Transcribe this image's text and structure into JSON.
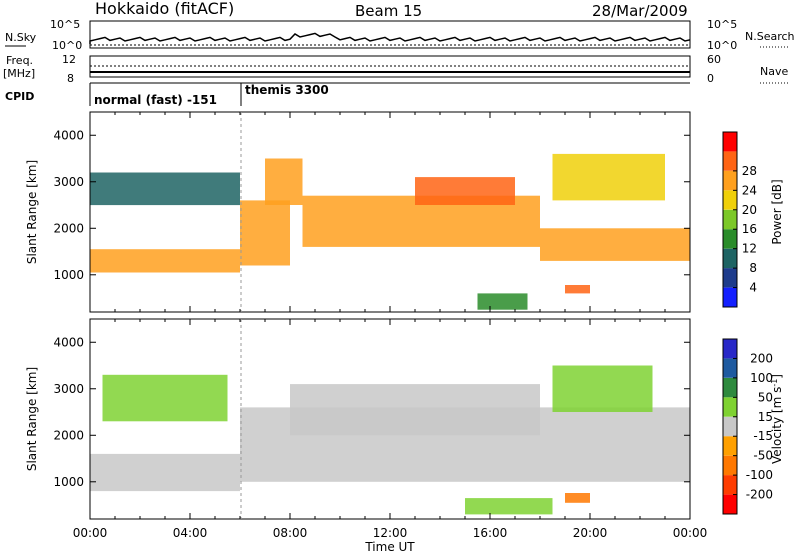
{
  "header": {
    "station": "Hokkaido (fitACF)",
    "beam": "Beam 15",
    "date": "28/Mar/2009"
  },
  "panels": {
    "nsky": {
      "left_label": "N.Sky",
      "right_label": "N.Search",
      "ticks_left": [
        "10^5",
        "10^0"
      ],
      "ticks_right": [
        "10^5",
        "10^0"
      ]
    },
    "freq": {
      "left_label_1": "Freq.",
      "left_label_2": "[MHz]",
      "right_label": "Nave",
      "ticks_left": [
        "12",
        "8"
      ],
      "ticks_right": [
        "60",
        "0"
      ]
    },
    "cpid": {
      "label": "CPID",
      "modes": [
        "normal (fast) -151",
        "themis 3300"
      ]
    }
  },
  "chart_data": [
    {
      "type": "heatmap",
      "title": "",
      "quantity": "Power",
      "xlabel": "",
      "ylabel": "Slant Range [km]",
      "colorbar_label": "Power [dB]",
      "xlim": [
        "00:00",
        "24:00"
      ],
      "ylim": [
        200,
        4500
      ],
      "y_ticks": [
        1000,
        2000,
        3000,
        4000
      ],
      "colorbar_ticks": [
        4,
        8,
        12,
        16,
        20,
        24,
        28
      ],
      "colorbar_colors": [
        "#1420ff",
        "#1e3c8c",
        "#1e6464",
        "#2a8c2a",
        "#7cc828",
        "#f0d00a",
        "#ffa01e",
        "#ff6414",
        "#ff0000"
      ],
      "regions": [
        {
          "t_start": 0.0,
          "t_end": 6.0,
          "range_start": 1050,
          "range_end": 1550,
          "level_db": 24
        },
        {
          "t_start": 0.0,
          "t_end": 6.0,
          "range_start": 2500,
          "range_end": 3200,
          "level_db": 8
        },
        {
          "t_start": 6.0,
          "t_end": 8.0,
          "range_start": 1200,
          "range_end": 2600,
          "level_db": 22
        },
        {
          "t_start": 7.0,
          "t_end": 8.5,
          "range_start": 2500,
          "range_end": 3500,
          "level_db": 22
        },
        {
          "t_start": 8.5,
          "t_end": 18.0,
          "range_start": 1600,
          "range_end": 2700,
          "level_db": 24
        },
        {
          "t_start": 13.0,
          "t_end": 17.0,
          "range_start": 2500,
          "range_end": 3100,
          "level_db": 26
        },
        {
          "t_start": 18.0,
          "t_end": 24.0,
          "range_start": 1300,
          "range_end": 2000,
          "level_db": 24
        },
        {
          "t_start": 18.5,
          "t_end": 23.0,
          "range_start": 2600,
          "range_end": 3600,
          "level_db": 20
        },
        {
          "t_start": 19.0,
          "t_end": 20.0,
          "range_start": 600,
          "range_end": 780,
          "level_db": 28
        },
        {
          "t_start": 15.5,
          "t_end": 17.5,
          "range_start": 250,
          "range_end": 600,
          "level_db": 12
        }
      ]
    },
    {
      "type": "heatmap",
      "title": "",
      "quantity": "Velocity",
      "xlabel": "Time UT",
      "ylabel": "Slant Range [km]",
      "colorbar_label": "Velocity [m s^-1]",
      "xlim": [
        "00:00",
        "24:00"
      ],
      "ylim": [
        200,
        4500
      ],
      "x_ticks": [
        "00:00",
        "04:00",
        "08:00",
        "12:00",
        "16:00",
        "20:00",
        "00:00"
      ],
      "y_ticks": [
        1000,
        2000,
        3000,
        4000
      ],
      "colorbar_ticks": [
        200,
        100,
        50,
        15,
        -15,
        -50,
        -100,
        -200
      ],
      "colorbar_colors": [
        "#2828c8",
        "#1e5aa0",
        "#2e8a3e",
        "#7fd232",
        "#c8c8c8",
        "#ffa000",
        "#ff7800",
        "#ff3c00",
        "#ff0000"
      ],
      "regions": [
        {
          "t_start": 0.0,
          "t_end": 6.0,
          "range_start": 800,
          "range_end": 1600,
          "velocity": 0
        },
        {
          "t_start": 0.5,
          "t_end": 5.5,
          "range_start": 2300,
          "range_end": 3300,
          "velocity": 20
        },
        {
          "t_start": 6.0,
          "t_end": 24.0,
          "range_start": 1000,
          "range_end": 2600,
          "velocity": 0
        },
        {
          "t_start": 8.0,
          "t_end": 18.0,
          "range_start": 2000,
          "range_end": 3100,
          "velocity": 0
        },
        {
          "t_start": 18.5,
          "t_end": 22.5,
          "range_start": 2500,
          "range_end": 3500,
          "velocity": 30
        },
        {
          "t_start": 15.0,
          "t_end": 18.5,
          "range_start": 300,
          "range_end": 650,
          "velocity": 30
        },
        {
          "t_start": 19.0,
          "t_end": 20.0,
          "range_start": 550,
          "range_end": 760,
          "velocity": -60
        }
      ]
    }
  ]
}
